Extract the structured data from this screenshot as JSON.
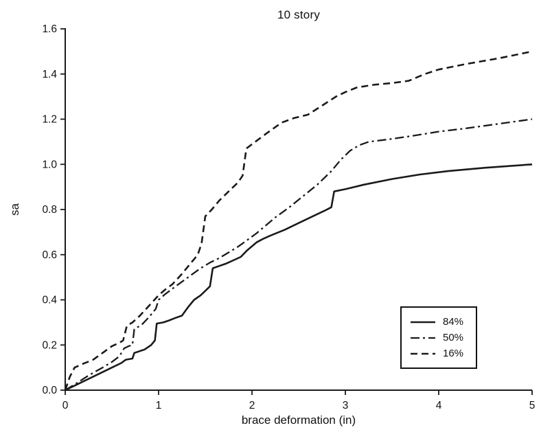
{
  "chart_data": {
    "type": "line",
    "title": "10 story",
    "xlabel": "brace deformation (in)",
    "ylabel": "sa",
    "xlim": [
      0,
      5
    ],
    "ylim": [
      0,
      1.6
    ],
    "x_tick_labels": [
      "0",
      "1",
      "2",
      "3",
      "4",
      "5"
    ],
    "y_tick_labels": [
      "0.0",
      "0.2",
      "0.4",
      "0.6",
      "0.8",
      "1.0",
      "1.2",
      "1.4",
      "1.6"
    ],
    "grid": false,
    "line_color": "#1a1a1a",
    "legend_position": "lower-right",
    "series": [
      {
        "name": "84%",
        "style": "solid",
        "dash": "",
        "width": 2.6,
        "points": [
          [
            0,
            0
          ],
          [
            0.1,
            0.02
          ],
          [
            0.25,
            0.05
          ],
          [
            0.4,
            0.08
          ],
          [
            0.5,
            0.1
          ],
          [
            0.6,
            0.12
          ],
          [
            0.65,
            0.135
          ],
          [
            0.72,
            0.14
          ],
          [
            0.74,
            0.165
          ],
          [
            0.85,
            0.18
          ],
          [
            0.92,
            0.2
          ],
          [
            0.96,
            0.22
          ],
          [
            0.98,
            0.295
          ],
          [
            1.05,
            0.3
          ],
          [
            1.12,
            0.31
          ],
          [
            1.18,
            0.32
          ],
          [
            1.25,
            0.33
          ],
          [
            1.32,
            0.37
          ],
          [
            1.38,
            0.4
          ],
          [
            1.45,
            0.42
          ],
          [
            1.5,
            0.44
          ],
          [
            1.55,
            0.46
          ],
          [
            1.58,
            0.54
          ],
          [
            1.65,
            0.55
          ],
          [
            1.72,
            0.56
          ],
          [
            1.8,
            0.575
          ],
          [
            1.88,
            0.59
          ],
          [
            1.95,
            0.62
          ],
          [
            2.05,
            0.655
          ],
          [
            2.12,
            0.67
          ],
          [
            2.2,
            0.685
          ],
          [
            2.35,
            0.71
          ],
          [
            2.5,
            0.74
          ],
          [
            2.65,
            0.77
          ],
          [
            2.78,
            0.795
          ],
          [
            2.85,
            0.81
          ],
          [
            2.88,
            0.88
          ],
          [
            3.0,
            0.89
          ],
          [
            3.2,
            0.91
          ],
          [
            3.5,
            0.935
          ],
          [
            3.8,
            0.955
          ],
          [
            4.1,
            0.97
          ],
          [
            4.5,
            0.985
          ],
          [
            5.0,
            1.0
          ]
        ]
      },
      {
        "name": "50%",
        "style": "dash-dot",
        "dash": "13 5 3 5",
        "width": 2.3,
        "points": [
          [
            0,
            0
          ],
          [
            0.12,
            0.03
          ],
          [
            0.25,
            0.065
          ],
          [
            0.4,
            0.1
          ],
          [
            0.5,
            0.125
          ],
          [
            0.58,
            0.15
          ],
          [
            0.63,
            0.185
          ],
          [
            0.68,
            0.195
          ],
          [
            0.72,
            0.2
          ],
          [
            0.74,
            0.27
          ],
          [
            0.82,
            0.29
          ],
          [
            0.9,
            0.325
          ],
          [
            0.97,
            0.36
          ],
          [
            1.0,
            0.4
          ],
          [
            1.07,
            0.425
          ],
          [
            1.15,
            0.45
          ],
          [
            1.25,
            0.48
          ],
          [
            1.35,
            0.51
          ],
          [
            1.45,
            0.54
          ],
          [
            1.55,
            0.565
          ],
          [
            1.65,
            0.585
          ],
          [
            1.75,
            0.61
          ],
          [
            1.85,
            0.635
          ],
          [
            1.95,
            0.665
          ],
          [
            2.05,
            0.695
          ],
          [
            2.15,
            0.73
          ],
          [
            2.25,
            0.765
          ],
          [
            2.4,
            0.81
          ],
          [
            2.55,
            0.86
          ],
          [
            2.7,
            0.91
          ],
          [
            2.85,
            0.97
          ],
          [
            2.95,
            1.02
          ],
          [
            3.05,
            1.06
          ],
          [
            3.15,
            1.085
          ],
          [
            3.25,
            1.1
          ],
          [
            3.45,
            1.11
          ],
          [
            3.7,
            1.125
          ],
          [
            4.0,
            1.145
          ],
          [
            4.3,
            1.16
          ],
          [
            4.65,
            1.18
          ],
          [
            5.0,
            1.2
          ]
        ]
      },
      {
        "name": "16%",
        "style": "dashed",
        "dash": "10 6",
        "width": 2.6,
        "points": [
          [
            0,
            0
          ],
          [
            0.05,
            0.06
          ],
          [
            0.1,
            0.1
          ],
          [
            0.18,
            0.115
          ],
          [
            0.3,
            0.135
          ],
          [
            0.4,
            0.165
          ],
          [
            0.5,
            0.195
          ],
          [
            0.58,
            0.21
          ],
          [
            0.62,
            0.22
          ],
          [
            0.66,
            0.285
          ],
          [
            0.72,
            0.3
          ],
          [
            0.8,
            0.33
          ],
          [
            0.9,
            0.375
          ],
          [
            1.0,
            0.42
          ],
          [
            1.07,
            0.445
          ],
          [
            1.15,
            0.47
          ],
          [
            1.25,
            0.515
          ],
          [
            1.32,
            0.55
          ],
          [
            1.38,
            0.58
          ],
          [
            1.42,
            0.6
          ],
          [
            1.46,
            0.65
          ],
          [
            1.5,
            0.77
          ],
          [
            1.57,
            0.8
          ],
          [
            1.65,
            0.84
          ],
          [
            1.75,
            0.88
          ],
          [
            1.85,
            0.92
          ],
          [
            1.9,
            0.95
          ],
          [
            1.94,
            1.07
          ],
          [
            2.02,
            1.095
          ],
          [
            2.1,
            1.12
          ],
          [
            2.2,
            1.15
          ],
          [
            2.32,
            1.185
          ],
          [
            2.45,
            1.205
          ],
          [
            2.6,
            1.22
          ],
          [
            2.75,
            1.26
          ],
          [
            2.9,
            1.3
          ],
          [
            3.0,
            1.32
          ],
          [
            3.12,
            1.34
          ],
          [
            3.3,
            1.352
          ],
          [
            3.5,
            1.36
          ],
          [
            3.68,
            1.37
          ],
          [
            3.85,
            1.4
          ],
          [
            4.0,
            1.42
          ],
          [
            4.3,
            1.445
          ],
          [
            4.65,
            1.47
          ],
          [
            5.0,
            1.5
          ]
        ]
      }
    ]
  }
}
